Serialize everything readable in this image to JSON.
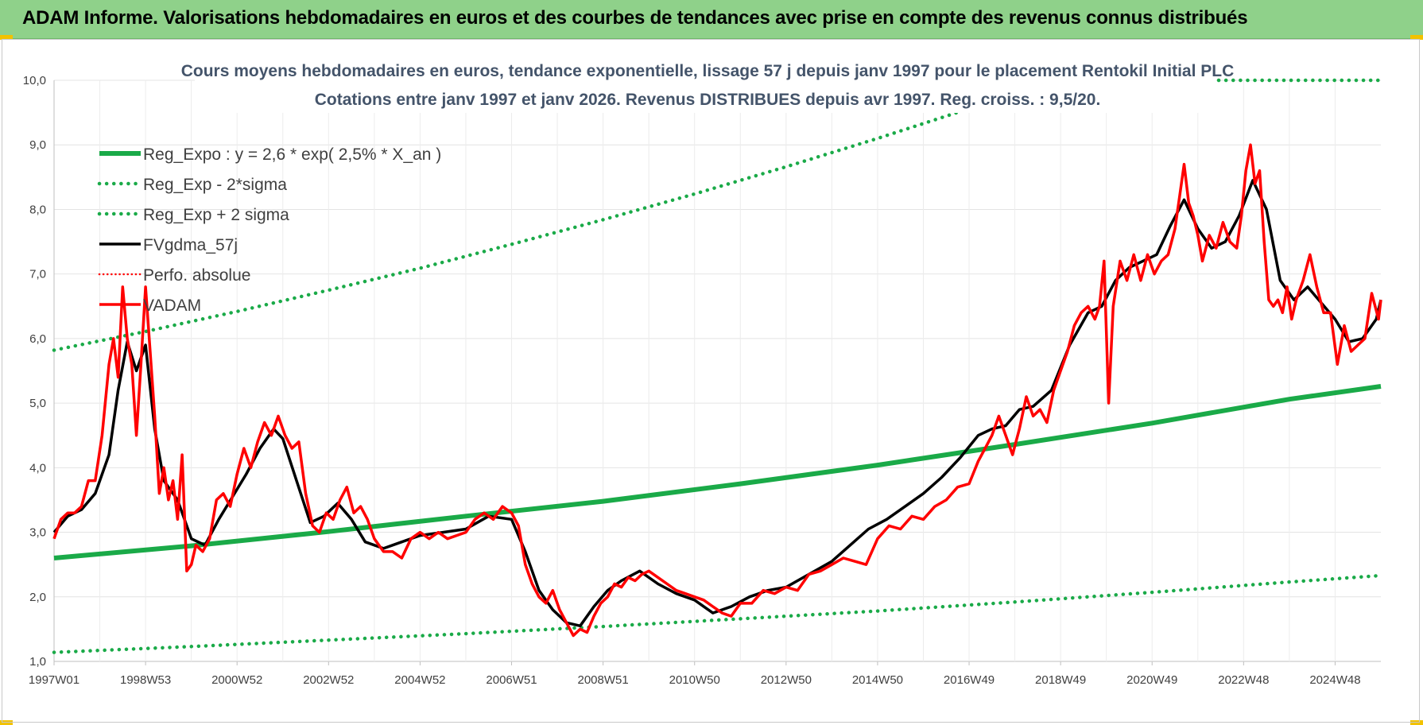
{
  "header": {
    "title": "ADAM Informe. Valorisations hebdomadaires en euros et des courbes de tendances avec prise en compte des revenus connus distribués"
  },
  "colors": {
    "banner": "#8fd18a",
    "reg_expo": "#1aaa48",
    "fvgdma": "#000000",
    "vadam": "#ff0000",
    "title_text": "#44546a"
  },
  "chart_data": {
    "type": "line",
    "title": "Cours moyens hebdomadaires en euros, tendance exponentielle, lissage 57 j depuis janv 1997  pour le placement Rentokil Initial PLC",
    "subtitle": "Cotations entre janv 1997 et janv 2026. Revenus DISTRIBUES depuis avr 1997. Reg. croiss. : 9,5/20.",
    "x_range": [
      1997.0,
      2026.0
    ],
    "ylim": [
      1.0,
      10.0
    ],
    "y_ticks": [
      "1,0",
      "2,0",
      "3,0",
      "4,0",
      "5,0",
      "6,0",
      "7,0",
      "8,0",
      "9,0",
      "10,0"
    ],
    "x_tick_labels": [
      "1997W01",
      "1998W53",
      "2000W52",
      "2002W52",
      "2004W52",
      "2006W51",
      "2008W51",
      "2010W50",
      "2012W50",
      "2014W50",
      "2016W49",
      "2018W49",
      "2020W49",
      "2022W48",
      "2024W48"
    ],
    "x_tick_years": [
      1997.0,
      1999.0,
      2001.0,
      2003.0,
      2005.0,
      2007.0,
      2009.0,
      2011.0,
      2013.0,
      2015.0,
      2017.0,
      2019.0,
      2021.0,
      2023.0,
      2025.0
    ],
    "grid": true,
    "legend_position": "top-left",
    "series": [
      {
        "name": "Reg_Expo : y = 2,6 * exp( 2,5% *  X_an )",
        "kind": "reg",
        "x": [
          1997.0,
          2000.0,
          2003.0,
          2006.0,
          2009.0,
          2012.0,
          2015.0,
          2018.0,
          2021.0,
          2024.0,
          2026.0
        ],
        "y": [
          2.6,
          2.79,
          3.01,
          3.25,
          3.48,
          3.75,
          4.04,
          4.36,
          4.69,
          5.06,
          5.26
        ]
      },
      {
        "name": "Reg_Exp - 2*sigma",
        "kind": "low",
        "x": [
          1997.0,
          2000.0,
          2003.0,
          2006.0,
          2009.0,
          2012.0,
          2015.0,
          2018.0,
          2021.0,
          2024.0,
          2026.0
        ],
        "y": [
          1.14,
          1.23,
          1.33,
          1.43,
          1.54,
          1.66,
          1.78,
          1.92,
          2.07,
          2.23,
          2.33
        ]
      },
      {
        "name": "Reg_Exp + 2 sigma",
        "kind": "high",
        "x": [
          1997.0,
          1999.0,
          2001.0,
          2003.0,
          2005.0,
          2007.0,
          2009.0,
          2011.0,
          2013.0,
          2015.0,
          2017.0,
          2019.0,
          2021.0,
          2023.0,
          2026.0
        ],
        "y": [
          5.82,
          6.11,
          6.42,
          6.75,
          7.09,
          7.46,
          7.84,
          8.24,
          8.66,
          9.1,
          9.56,
          10.0,
          10.0,
          10.0,
          10.0
        ]
      },
      {
        "name": "FVgdma_57j",
        "kind": "fv",
        "x": [
          1997.0,
          1997.3,
          1997.6,
          1997.9,
          1998.2,
          1998.4,
          1998.6,
          1998.8,
          1999.0,
          1999.2,
          1999.4,
          1999.7,
          2000.0,
          2000.3,
          2000.6,
          2000.9,
          2001.2,
          2001.5,
          2001.8,
          2002.0,
          2002.3,
          2002.6,
          2002.9,
          2003.2,
          2003.5,
          2003.8,
          2004.2,
          2004.6,
          2005.0,
          2005.5,
          2006.0,
          2006.5,
          2007.0,
          2007.3,
          2007.6,
          2007.9,
          2008.2,
          2008.5,
          2008.8,
          2009.1,
          2009.4,
          2009.8,
          2010.2,
          2010.6,
          2011.0,
          2011.4,
          2011.8,
          2012.2,
          2012.6,
          2013.0,
          2013.5,
          2014.0,
          2014.4,
          2014.8,
          2015.2,
          2015.6,
          2016.0,
          2016.4,
          2016.8,
          2017.2,
          2017.5,
          2017.8,
          2018.1,
          2018.4,
          2018.8,
          2019.2,
          2019.6,
          2019.9,
          2020.2,
          2020.5,
          2020.8,
          2021.1,
          2021.4,
          2021.7,
          2022.0,
          2022.3,
          2022.6,
          2022.9,
          2023.2,
          2023.5,
          2023.8,
          2024.1,
          2024.4,
          2024.7,
          2025.0,
          2025.3,
          2025.6,
          2025.9,
          2026.0
        ],
        "y": [
          3.0,
          3.25,
          3.35,
          3.6,
          4.2,
          5.2,
          5.95,
          5.5,
          5.9,
          4.6,
          3.8,
          3.5,
          2.9,
          2.8,
          3.2,
          3.55,
          3.9,
          4.3,
          4.6,
          4.45,
          3.8,
          3.15,
          3.25,
          3.45,
          3.2,
          2.85,
          2.75,
          2.85,
          2.95,
          3.0,
          3.05,
          3.25,
          3.2,
          2.7,
          2.1,
          1.8,
          1.6,
          1.55,
          1.85,
          2.1,
          2.25,
          2.4,
          2.2,
          2.05,
          1.95,
          1.75,
          1.85,
          2.0,
          2.1,
          2.15,
          2.35,
          2.55,
          2.8,
          3.05,
          3.2,
          3.4,
          3.6,
          3.85,
          4.15,
          4.5,
          4.6,
          4.65,
          4.9,
          4.95,
          5.2,
          5.9,
          6.4,
          6.5,
          6.9,
          7.1,
          7.2,
          7.3,
          7.75,
          8.15,
          7.7,
          7.4,
          7.5,
          7.9,
          8.45,
          8.0,
          6.9,
          6.6,
          6.8,
          6.55,
          6.3,
          5.95,
          6.0,
          6.3,
          6.6
        ]
      },
      {
        "name": "Perfo. absolue",
        "kind": "perfo",
        "x": [],
        "y": []
      },
      {
        "name": "VADAM",
        "kind": "vadam",
        "x": [
          1997.0,
          1997.15,
          1997.3,
          1997.45,
          1997.6,
          1997.75,
          1997.9,
          1998.05,
          1998.2,
          1998.3,
          1998.4,
          1998.5,
          1998.6,
          1998.7,
          1998.8,
          1998.9,
          1999.0,
          1999.1,
          1999.2,
          1999.3,
          1999.4,
          1999.5,
          1999.6,
          1999.7,
          1999.8,
          1999.9,
          2000.0,
          2000.1,
          2000.25,
          2000.4,
          2000.55,
          2000.7,
          2000.85,
          2001.0,
          2001.15,
          2001.3,
          2001.45,
          2001.6,
          2001.75,
          2001.9,
          2002.05,
          2002.2,
          2002.35,
          2002.5,
          2002.65,
          2002.8,
          2002.95,
          2003.1,
          2003.25,
          2003.4,
          2003.55,
          2003.7,
          2003.85,
          2004.0,
          2004.2,
          2004.4,
          2004.6,
          2004.8,
          2005.0,
          2005.2,
          2005.4,
          2005.6,
          2005.8,
          2006.0,
          2006.2,
          2006.4,
          2006.6,
          2006.8,
          2007.0,
          2007.15,
          2007.3,
          2007.45,
          2007.6,
          2007.75,
          2007.9,
          2008.05,
          2008.2,
          2008.35,
          2008.5,
          2008.65,
          2008.8,
          2008.95,
          2009.1,
          2009.25,
          2009.4,
          2009.55,
          2009.7,
          2009.85,
          2010.0,
          2010.2,
          2010.4,
          2010.6,
          2010.8,
          2011.0,
          2011.2,
          2011.4,
          2011.6,
          2011.8,
          2012.0,
          2012.25,
          2012.5,
          2012.75,
          2013.0,
          2013.25,
          2013.5,
          2013.75,
          2014.0,
          2014.25,
          2014.5,
          2014.75,
          2015.0,
          2015.25,
          2015.5,
          2015.75,
          2016.0,
          2016.25,
          2016.5,
          2016.75,
          2017.0,
          2017.2,
          2017.35,
          2017.5,
          2017.65,
          2017.8,
          2017.95,
          2018.1,
          2018.25,
          2018.4,
          2018.55,
          2018.7,
          2018.85,
          2019.0,
          2019.15,
          2019.3,
          2019.45,
          2019.6,
          2019.75,
          2019.85,
          2019.95,
          2020.05,
          2020.15,
          2020.3,
          2020.45,
          2020.6,
          2020.75,
          2020.9,
          2021.05,
          2021.2,
          2021.35,
          2021.5,
          2021.6,
          2021.7,
          2021.8,
          2021.9,
          2022.0,
          2022.1,
          2022.25,
          2022.4,
          2022.55,
          2022.7,
          2022.85,
          2022.95,
          2023.05,
          2023.15,
          2023.25,
          2023.35,
          2023.45,
          2023.55,
          2023.65,
          2023.75,
          2023.85,
          2023.95,
          2024.05,
          2024.15,
          2024.3,
          2024.45,
          2024.6,
          2024.75,
          2024.9,
          2025.05,
          2025.2,
          2025.35,
          2025.5,
          2025.65,
          2025.8,
          2025.95,
          2026.0
        ],
        "y": [
          2.9,
          3.2,
          3.3,
          3.3,
          3.4,
          3.8,
          3.8,
          4.5,
          5.6,
          6.0,
          5.4,
          6.8,
          6.0,
          5.6,
          4.5,
          5.6,
          6.8,
          5.8,
          4.8,
          3.6,
          4.0,
          3.5,
          3.8,
          3.2,
          4.2,
          2.4,
          2.5,
          2.8,
          2.7,
          2.9,
          3.5,
          3.6,
          3.4,
          3.9,
          4.3,
          4.0,
          4.4,
          4.7,
          4.5,
          4.8,
          4.5,
          4.3,
          4.4,
          3.6,
          3.1,
          3.0,
          3.3,
          3.2,
          3.5,
          3.7,
          3.3,
          3.4,
          3.2,
          2.9,
          2.7,
          2.7,
          2.6,
          2.9,
          3.0,
          2.9,
          3.0,
          2.9,
          2.95,
          3.0,
          3.2,
          3.3,
          3.2,
          3.4,
          3.3,
          3.1,
          2.5,
          2.2,
          2.0,
          1.9,
          2.1,
          1.8,
          1.6,
          1.4,
          1.5,
          1.45,
          1.7,
          1.9,
          2.0,
          2.2,
          2.15,
          2.3,
          2.25,
          2.35,
          2.4,
          2.3,
          2.2,
          2.1,
          2.05,
          2.0,
          1.95,
          1.85,
          1.75,
          1.7,
          1.9,
          1.9,
          2.1,
          2.05,
          2.15,
          2.1,
          2.35,
          2.4,
          2.5,
          2.6,
          2.55,
          2.5,
          2.9,
          3.1,
          3.05,
          3.25,
          3.2,
          3.4,
          3.5,
          3.7,
          3.75,
          4.1,
          4.3,
          4.5,
          4.8,
          4.5,
          4.2,
          4.6,
          5.1,
          4.8,
          4.9,
          4.7,
          5.2,
          5.5,
          5.8,
          6.2,
          6.4,
          6.5,
          6.3,
          6.5,
          7.2,
          5.0,
          6.5,
          7.2,
          6.9,
          7.3,
          6.9,
          7.3,
          7.0,
          7.2,
          7.3,
          7.7,
          8.2,
          8.7,
          8.1,
          7.9,
          7.6,
          7.2,
          7.6,
          7.4,
          7.8,
          7.5,
          7.4,
          7.9,
          8.6,
          9.0,
          8.4,
          8.6,
          7.5,
          6.6,
          6.5,
          6.6,
          6.4,
          6.8,
          6.3,
          6.6,
          6.9,
          7.3,
          6.8,
          6.4,
          6.4,
          5.6,
          6.2,
          5.8,
          5.9,
          6.0,
          6.7,
          6.3,
          6.6
        ]
      }
    ]
  }
}
